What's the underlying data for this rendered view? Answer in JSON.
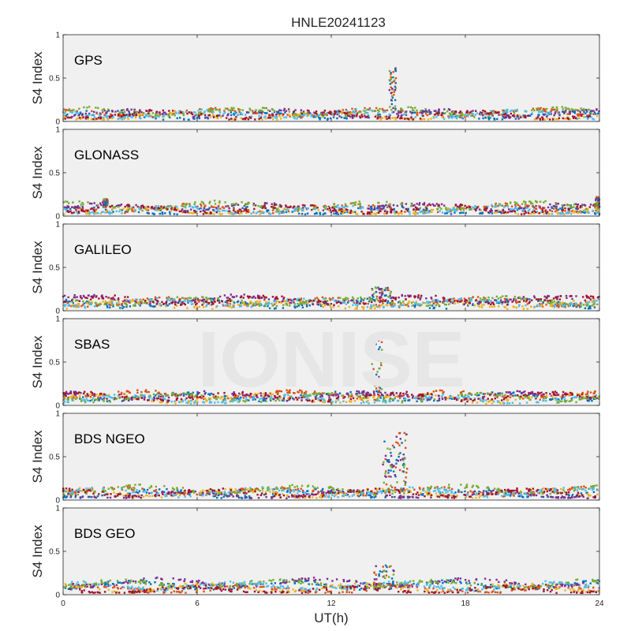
{
  "title": "HNLE20241123",
  "watermark": "IONISE",
  "xlabel": "UT(h)",
  "colors": {
    "series": [
      "#0072BD",
      "#D95319",
      "#EDB120",
      "#7E2F8E",
      "#77AC30",
      "#4DBEEE",
      "#A2142F"
    ],
    "axes_bg": "#f0f0f0",
    "axes_line": "#262626",
    "watermark": "#e6e6e6"
  },
  "chart_data": [
    {
      "type": "scatter",
      "panel_label": "GPS",
      "ylabel": "S4 Index",
      "xlim": [
        0,
        24
      ],
      "ylim": [
        0,
        1
      ],
      "xticks": [
        "0",
        "6",
        "12",
        "18",
        "24"
      ],
      "yticks": [
        "0",
        "0.5",
        "1"
      ],
      "grid": false,
      "baseline": [
        0.07,
        0.1,
        0.06,
        0.09,
        0.11,
        0.08,
        0.07
      ],
      "bursts": [
        {
          "x": [
            14.6,
            14.9
          ],
          "peak": 0.63
        }
      ]
    },
    {
      "type": "scatter",
      "panel_label": "GLONASS",
      "ylabel": "S4 Index",
      "xlim": [
        0,
        24
      ],
      "ylim": [
        0,
        1
      ],
      "xticks": [
        "0",
        "6",
        "12",
        "18",
        "24"
      ],
      "yticks": [
        "0",
        "0.5",
        "1"
      ],
      "grid": false,
      "baseline": [
        0.06,
        0.09,
        0.05,
        0.1,
        0.12,
        0.07,
        0.08
      ],
      "bursts": [
        {
          "x": [
            1.8,
            2.0
          ],
          "peak": 0.2
        },
        {
          "x": [
            23.8,
            24.0
          ],
          "peak": 0.22
        }
      ]
    },
    {
      "type": "scatter",
      "panel_label": "GALILEO",
      "ylabel": "S4 Index",
      "xlim": [
        0,
        24
      ],
      "ylim": [
        0,
        1
      ],
      "xticks": [
        "0",
        "6",
        "12",
        "18",
        "24"
      ],
      "yticks": [
        "0",
        "0.5",
        "1"
      ],
      "grid": false,
      "baseline": [
        0.08,
        0.1,
        0.07,
        0.13,
        0.11,
        0.09,
        0.12
      ],
      "bursts": [
        {
          "x": [
            13.8,
            14.8
          ],
          "peak": 0.27
        }
      ]
    },
    {
      "type": "scatter",
      "panel_label": "SBAS",
      "ylabel": "S4 Index",
      "xlim": [
        0,
        24
      ],
      "ylim": [
        0,
        1
      ],
      "xticks": [
        "0",
        "6",
        "12",
        "18",
        "24"
      ],
      "yticks": [
        "0",
        "0.5",
        "1"
      ],
      "grid": false,
      "baseline": [
        0.1,
        0.12,
        0.08,
        0.11,
        0.09,
        0.07,
        0.1
      ],
      "bursts": [
        {
          "x": [
            13.8,
            14.3
          ],
          "peak": 0.8
        }
      ]
    },
    {
      "type": "scatter",
      "panel_label": "BDS NGEO",
      "ylabel": "S4 Index",
      "xlim": [
        0,
        24
      ],
      "ylim": [
        0,
        1
      ],
      "xticks": [
        "0",
        "6",
        "12",
        "18",
        "24"
      ],
      "yticks": [
        "0",
        "0.5",
        "1"
      ],
      "grid": false,
      "baseline": [
        0.07,
        0.1,
        0.08,
        0.06,
        0.12,
        0.09,
        0.08
      ],
      "bursts": [
        {
          "x": [
            14.3,
            14.9
          ],
          "peak": 0.72
        },
        {
          "x": [
            14.9,
            15.4
          ],
          "peak": 0.78
        }
      ]
    },
    {
      "type": "scatter",
      "panel_label": "BDS GEO",
      "ylabel": "S4 Index",
      "xlim": [
        0,
        24
      ],
      "ylim": [
        0,
        1
      ],
      "xticks": [
        "0",
        "6",
        "12",
        "18",
        "24"
      ],
      "yticks": [
        "0",
        "0.5",
        "1"
      ],
      "grid": false,
      "baseline": [
        0.11,
        0.06,
        0.08,
        0.14,
        0.12,
        0.1,
        0.05
      ],
      "bursts": [
        {
          "x": [
            13.9,
            14.8
          ],
          "peak": 0.35
        }
      ]
    }
  ]
}
